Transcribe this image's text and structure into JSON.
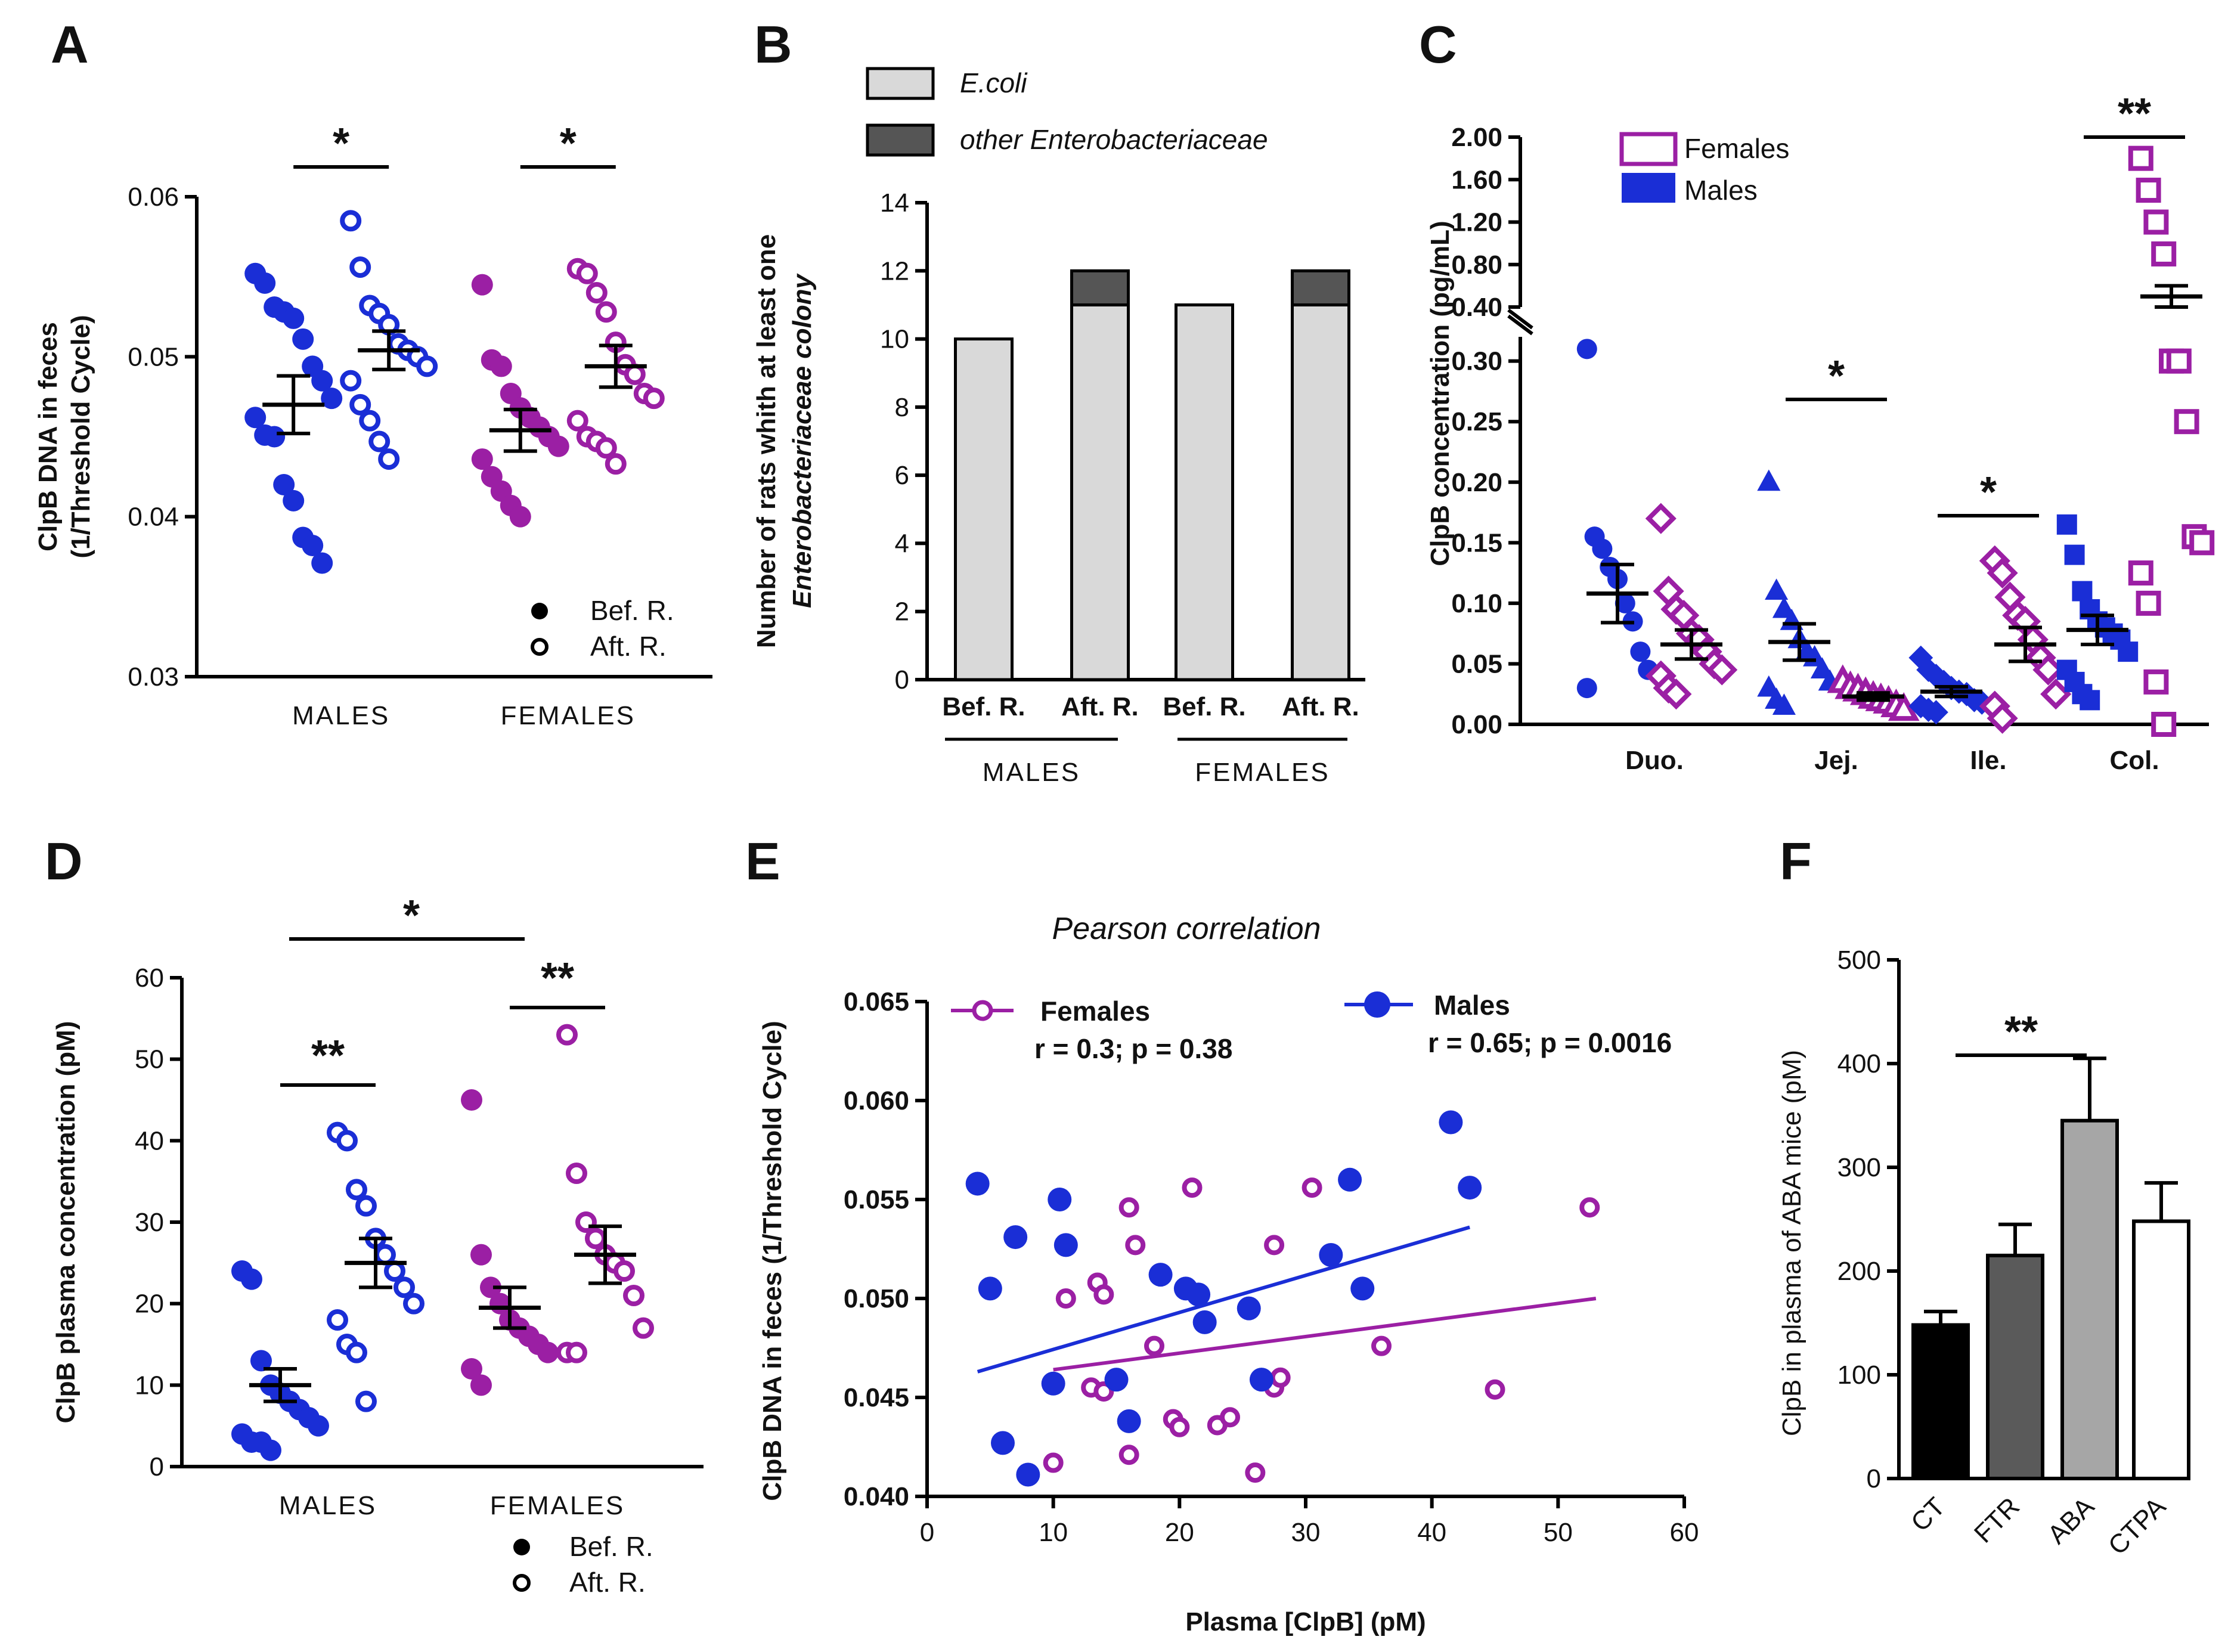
{
  "colors": {
    "male": "#1a2ed6",
    "female": "#9b1fa4",
    "ecoli": "#d9d9d9",
    "other": "#555555",
    "ct": "#000000",
    "ftr": "#5a5a5a",
    "aba": "#a6a6a6",
    "ctpa": "#ffffff"
  },
  "chart_data": [
    {
      "panel": "A",
      "type": "scatter",
      "ylabel": [
        "ClpB DNA in feces",
        "(1/Threshold Cycle)"
      ],
      "ylim": [
        0.03,
        0.06
      ],
      "yticks": [
        "0.03",
        "0.04",
        "0.05",
        "0.06"
      ],
      "groups": [
        "MALES",
        "FEMALES"
      ],
      "legend": {
        "before": "Bef. R.",
        "after": "Aft. R."
      },
      "significance": [
        "*",
        "*"
      ],
      "series": [
        {
          "name": "Males Bef. R.",
          "group": 0,
          "side": -1,
          "color": "male",
          "filled": true,
          "values": [
            0.0552,
            0.0546,
            0.0531,
            0.0528,
            0.0524,
            0.0511,
            0.0494,
            0.0485,
            0.0474,
            0.0462,
            0.0451,
            0.045,
            0.042,
            0.041,
            0.0387,
            0.0382,
            0.0371
          ],
          "mean": 0.047,
          "sem": 0.0018
        },
        {
          "name": "Males Aft. R.",
          "group": 0,
          "side": 1,
          "color": "male",
          "filled": false,
          "values": [
            0.0585,
            0.0556,
            0.0532,
            0.0527,
            0.052,
            0.0508,
            0.0504,
            0.05,
            0.0494,
            0.0485,
            0.047,
            0.046,
            0.0447,
            0.0436
          ],
          "mean": 0.0504,
          "sem": 0.0012
        },
        {
          "name": "Females Bef. R.",
          "group": 1,
          "side": -1,
          "color": "female",
          "filled": true,
          "values": [
            0.0545,
            0.0498,
            0.0494,
            0.0477,
            0.0468,
            0.0462,
            0.0456,
            0.045,
            0.0444,
            0.0436,
            0.0425,
            0.0416,
            0.0407,
            0.04
          ],
          "mean": 0.0454,
          "sem": 0.0013
        },
        {
          "name": "Females Aft. R.",
          "group": 1,
          "side": 1,
          "color": "female",
          "filled": false,
          "values": [
            0.0555,
            0.0552,
            0.054,
            0.0528,
            0.0509,
            0.0495,
            0.0489,
            0.0477,
            0.0474,
            0.046,
            0.045,
            0.0447,
            0.0443,
            0.0433
          ],
          "mean": 0.0494,
          "sem": 0.0013
        }
      ]
    },
    {
      "panel": "B",
      "type": "bar",
      "ylabel": [
        "Number of rats whith at least one",
        "Enterobacteriaceae colony"
      ],
      "ylim": [
        0,
        14
      ],
      "yticks": [
        "0",
        "2",
        "4",
        "6",
        "8",
        "10",
        "12",
        "14"
      ],
      "categories": [
        "Bef. R.",
        "Aft. R.",
        "Bef. R.",
        "Aft. R."
      ],
      "groups": [
        "MALES",
        "FEMALES"
      ],
      "legend": [
        "E.coli",
        "other Enterobacteriaceae"
      ],
      "series": [
        {
          "name": "E.coli",
          "values": [
            10,
            11,
            11,
            11
          ]
        },
        {
          "name": "other Enterobacteriaceae",
          "values": [
            0,
            1,
            0,
            1
          ]
        }
      ]
    },
    {
      "panel": "C",
      "type": "scatter",
      "ylabel": "ClpB concentration (pg/mL)",
      "lower_ylim": [
        0,
        0.32
      ],
      "lower_yticks": [
        "0.00",
        "0.05",
        "0.10",
        "0.15",
        "0.20",
        "0.25",
        "0.30"
      ],
      "upper_ylim": [
        0.4,
        2.0
      ],
      "upper_yticks": [
        "0.40",
        "0.80",
        "1.20",
        "1.60",
        "2.00"
      ],
      "categories": [
        "Duo.",
        "Jej.",
        "Ile.",
        "Col."
      ],
      "legend": [
        "Females",
        "Males"
      ],
      "significance": [
        "*",
        "*",
        "**"
      ],
      "series": [
        {
          "name": "Duo. Males",
          "cat": 0,
          "side": -1,
          "color": "male",
          "filled": true,
          "marker": "circle",
          "values": [
            0.31,
            0.155,
            0.145,
            0.13,
            0.12,
            0.1,
            0.085,
            0.06,
            0.045,
            0.03
          ],
          "mean": 0.108,
          "sem": 0.024
        },
        {
          "name": "Duo. Females",
          "cat": 0,
          "side": 1,
          "color": "female",
          "filled": false,
          "marker": "diamond",
          "values": [
            0.17,
            0.11,
            0.095,
            0.09,
            0.075,
            0.07,
            0.06,
            0.05,
            0.045,
            0.04,
            0.03,
            0.025
          ],
          "mean": 0.066,
          "sem": 0.012
        },
        {
          "name": "Jej. Males",
          "cat": 1,
          "side": -1,
          "color": "male",
          "filled": true,
          "marker": "triangle",
          "values": [
            0.2,
            0.11,
            0.095,
            0.085,
            0.07,
            0.06,
            0.055,
            0.045,
            0.035,
            0.03,
            0.02,
            0.015
          ],
          "mean": 0.068,
          "sem": 0.015
        },
        {
          "name": "Jej. Females",
          "cat": 1,
          "side": 1,
          "color": "female",
          "filled": false,
          "marker": "triangle",
          "values": [
            0.035,
            0.03,
            0.028,
            0.025,
            0.022,
            0.02,
            0.018,
            0.015,
            0.012
          ],
          "mean": 0.023,
          "sem": 0.003
        },
        {
          "name": "Ile. Males",
          "cat": 2,
          "side": -1,
          "color": "male",
          "filled": true,
          "marker": "diamond",
          "values": [
            0.055,
            0.045,
            0.04,
            0.035,
            0.03,
            0.027,
            0.025,
            0.02,
            0.018,
            0.015,
            0.012,
            0.01
          ],
          "mean": 0.027,
          "sem": 0.004
        },
        {
          "name": "Ile. Females",
          "cat": 2,
          "side": 1,
          "color": "female",
          "filled": false,
          "marker": "diamond",
          "values": [
            0.135,
            0.125,
            0.105,
            0.09,
            0.085,
            0.07,
            0.055,
            0.045,
            0.025,
            0.015,
            0.005
          ],
          "mean": 0.066,
          "sem": 0.014
        },
        {
          "name": "Col. Males",
          "cat": 3,
          "side": -1,
          "color": "male",
          "filled": true,
          "marker": "square",
          "values": [
            0.165,
            0.14,
            0.11,
            0.095,
            0.085,
            0.08,
            0.075,
            0.07,
            0.06,
            0.045,
            0.035,
            0.025,
            0.02
          ],
          "mean": 0.078,
          "sem": 0.012
        },
        {
          "name": "Col. Females",
          "cat": 3,
          "side": 1,
          "color": "female",
          "filled": false,
          "marker": "square",
          "values": [
            1.8,
            1.5,
            1.2,
            0.9,
            0.3,
            0.3,
            0.25,
            0.155,
            0.15,
            0.125,
            0.1,
            0.035,
            0.0
          ],
          "mean": 0.5,
          "sem": 0.1
        }
      ]
    },
    {
      "panel": "D",
      "type": "scatter",
      "ylabel": "ClpB plasma concentration (pM)",
      "ylim": [
        0,
        60
      ],
      "yticks": [
        "0",
        "10",
        "20",
        "30",
        "40",
        "50",
        "60"
      ],
      "groups": [
        "MALES",
        "FEMALES"
      ],
      "legend": {
        "before": "Bef. R.",
        "after": "Aft. R."
      },
      "significance": [
        "**",
        "**",
        "*"
      ],
      "series": [
        {
          "name": "Males Bef. R.",
          "group": 0,
          "side": -1,
          "color": "male",
          "filled": true,
          "values": [
            24,
            23,
            13,
            10,
            9,
            8,
            7,
            6,
            5,
            4,
            3,
            3,
            2
          ],
          "mean": 10,
          "sem": 2
        },
        {
          "name": "Males Aft. R.",
          "group": 0,
          "side": 1,
          "color": "male",
          "filled": false,
          "values": [
            41,
            40,
            34,
            32,
            28,
            26,
            24,
            22,
            20,
            18,
            15,
            14,
            8
          ],
          "mean": 25,
          "sem": 3
        },
        {
          "name": "Females Bef. R.",
          "group": 1,
          "side": -1,
          "color": "female",
          "filled": true,
          "values": [
            45,
            26,
            22,
            20,
            18,
            17,
            16,
            15,
            14,
            12,
            10
          ],
          "mean": 19.5,
          "sem": 2.5
        },
        {
          "name": "Females Aft. R.",
          "group": 1,
          "side": 1,
          "color": "female",
          "filled": false,
          "values": [
            53,
            36,
            30,
            28,
            26,
            25,
            24,
            21,
            17,
            14,
            14
          ],
          "mean": 26,
          "sem": 3.5
        }
      ]
    },
    {
      "panel": "E",
      "type": "scatter",
      "title": "Pearson correlation",
      "xlabel": "Plasma [ClpB] (pM)",
      "ylabel": "ClpB DNA in feces (1/Threshold Cycle)",
      "xlim": [
        0,
        60
      ],
      "xticks": [
        "0",
        "10",
        "20",
        "30",
        "40",
        "50",
        "60"
      ],
      "ylim": [
        0.04,
        0.065
      ],
      "yticks": [
        "0.040",
        "0.045",
        "0.050",
        "0.055",
        "0.060",
        "0.065"
      ],
      "legend": [
        {
          "name": "Females",
          "stats": "r = 0.3; p = 0.38"
        },
        {
          "name": "Males",
          "stats": "r = 0.65; p = 0.0016"
        }
      ],
      "series": [
        {
          "name": "Females",
          "color": "female",
          "filled": false,
          "points": [
            [
              10,
              0.0417
            ],
            [
              11,
              0.05
            ],
            [
              13,
              0.0455
            ],
            [
              13.5,
              0.0508
            ],
            [
              14,
              0.0453
            ],
            [
              14,
              0.0502
            ],
            [
              16,
              0.0421
            ],
            [
              16,
              0.0546
            ],
            [
              16.5,
              0.0527
            ],
            [
              18,
              0.0476
            ],
            [
              19.5,
              0.0439
            ],
            [
              20,
              0.0435
            ],
            [
              21,
              0.0556
            ],
            [
              23,
              0.0436
            ],
            [
              24,
              0.044
            ],
            [
              26,
              0.0412
            ],
            [
              27.5,
              0.0527
            ],
            [
              27.5,
              0.0455
            ],
            [
              28,
              0.046
            ],
            [
              30.5,
              0.0556
            ],
            [
              36,
              0.0476
            ],
            [
              45,
              0.0454
            ],
            [
              52.5,
              0.0546
            ]
          ],
          "fit": [
            [
              10,
              0.0464
            ],
            [
              53,
              0.05
            ]
          ]
        },
        {
          "name": "Males",
          "color": "male",
          "filled": true,
          "points": [
            [
              4,
              0.0558
            ],
            [
              5,
              0.0505
            ],
            [
              6,
              0.0427
            ],
            [
              7,
              0.0531
            ],
            [
              8,
              0.0411
            ],
            [
              10,
              0.0457
            ],
            [
              10.5,
              0.055
            ],
            [
              11,
              0.0527
            ],
            [
              15,
              0.0459
            ],
            [
              16,
              0.0438
            ],
            [
              18.5,
              0.0512
            ],
            [
              20.5,
              0.0505
            ],
            [
              21.5,
              0.0502
            ],
            [
              22,
              0.0488
            ],
            [
              25.5,
              0.0495
            ],
            [
              26.5,
              0.0459
            ],
            [
              32,
              0.0522
            ],
            [
              33.5,
              0.056
            ],
            [
              34.5,
              0.0505
            ],
            [
              41.5,
              0.0589
            ],
            [
              43,
              0.0556
            ]
          ],
          "fit": [
            [
              4,
              0.0463
            ],
            [
              43,
              0.0536
            ]
          ]
        }
      ]
    },
    {
      "panel": "F",
      "type": "bar",
      "ylabel": "ClpB in plasma of ABA mice (pM)",
      "ylim": [
        0,
        500
      ],
      "yticks": [
        "0",
        "100",
        "200",
        "300",
        "400",
        "500"
      ],
      "categories": [
        "CT",
        "FTR",
        "ABA",
        "CTPA"
      ],
      "values": [
        148,
        215,
        345,
        248
      ],
      "errors": [
        13,
        30,
        60,
        37
      ],
      "colors": [
        "ct",
        "ftr",
        "aba",
        "ctpa"
      ],
      "significance": [
        "**"
      ]
    }
  ]
}
